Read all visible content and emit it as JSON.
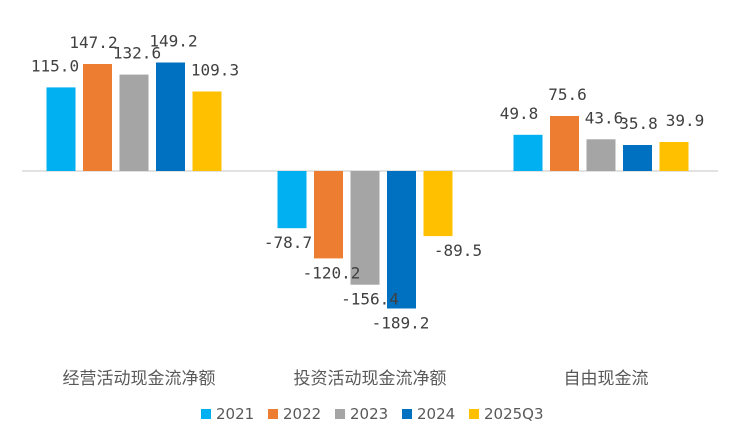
{
  "chart_data": {
    "type": "bar",
    "title": "",
    "xlabel": "",
    "ylabel": "",
    "categories": [
      "经营活动现金流净额",
      "投资活动现金流净额",
      "自由现金流"
    ],
    "ylim": [
      -189.2,
      149.2
    ],
    "grid": false,
    "legend_position": "bottom",
    "series": [
      {
        "name": "2021",
        "color": "#00B0F0",
        "values": [
          115.0,
          -78.7,
          49.8
        ],
        "labels": [
          "115.0",
          "-78.7",
          "49.8"
        ]
      },
      {
        "name": "2022",
        "color": "#ED7D31",
        "values": [
          147.2,
          -120.2,
          75.6
        ],
        "labels": [
          "147.2",
          "-120.2",
          "75.6"
        ]
      },
      {
        "name": "2023",
        "color": "#A5A5A5",
        "values": [
          132.6,
          -156.4,
          43.6
        ],
        "labels": [
          "132.6",
          "-156.4",
          "43.6"
        ]
      },
      {
        "name": "2024",
        "color": "#0070C0",
        "values": [
          149.2,
          -189.2,
          35.8
        ],
        "labels": [
          "149.2",
          "-189.2",
          "35.8"
        ]
      },
      {
        "name": "2025Q3",
        "color": "#FFC000",
        "values": [
          109.3,
          -89.5,
          39.9
        ],
        "labels": [
          "109.3",
          "-89.5",
          "39.9"
        ]
      }
    ]
  }
}
